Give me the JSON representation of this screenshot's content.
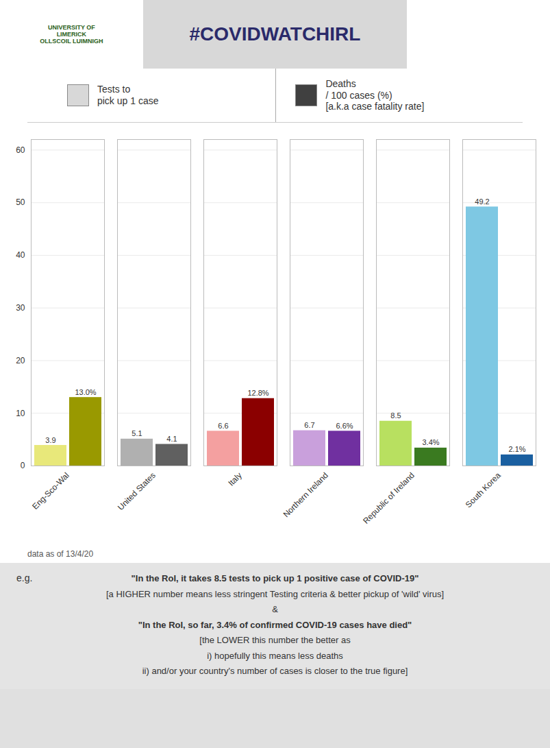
{
  "chart_data": {
    "type": "bar",
    "title": "#COVIDWATCHIRL",
    "categories": [
      "Eng-Sco-Wal",
      "United States",
      "Italy",
      "Northern Ireland",
      "Republic of Ireland",
      "South Korea"
    ],
    "series": [
      {
        "name": "Tests to\npick up 1 case",
        "color": "#d8d8d8",
        "colors": [
          "#e8e87a",
          "#b0b0b0",
          "#f4a0a0",
          "#c9a0dc",
          "#b8e060",
          "#7ec8e3"
        ],
        "values": [
          3.9,
          5.1,
          6.6,
          6.7,
          8.5,
          49.2
        ]
      },
      {
        "name": "Deaths\n/ 100 cases (%)\n[a.k.a case fatality rate]",
        "color": "#404040",
        "colors": [
          "#999900",
          "#606060",
          "#8b0000",
          "#7030a0",
          "#3a7a20",
          "#1a5fa0"
        ],
        "values": [
          13.0,
          4.1,
          12.8,
          6.6,
          3.4,
          2.1
        ],
        "value_labels": [
          "13.0%",
          "4.1",
          "12.8%",
          "6.6%",
          "3.4%",
          "2.1%"
        ]
      }
    ],
    "ylim": [
      0,
      62
    ],
    "yticks": [
      0,
      10,
      20,
      30,
      40,
      50,
      60
    ],
    "grid": true,
    "data_labels": true,
    "legend": "top",
    "annotations": [
      "UNIVERSITY OF\nLIMERICK\nOLLSCOIL LUIMNIGH",
      "data as of 13/4/20",
      "e.g.",
      "\"In the RoI, it takes 8.5 tests to pick up 1 positive case of COVID-19\"",
      "[a HIGHER number means less stringent Testing criteria & better pickup of 'wild' virus]",
      "&",
      "\"In the RoI, so far, 3.4% of confirmed COVID-19 cases have died\"",
      "[the LOWER this number the better as",
      "i) hopefully this means less deaths",
      "ii) and/or your country's number of cases is closer to the true figure]"
    ]
  }
}
